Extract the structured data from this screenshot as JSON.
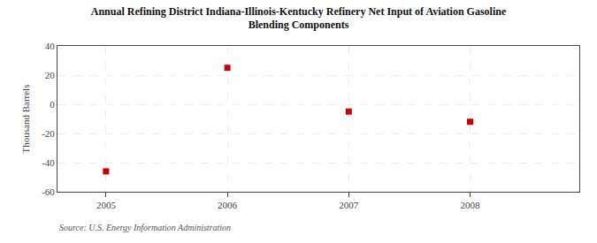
{
  "chart_data": {
    "type": "scatter",
    "title": "Annual Refining District Indiana-Illinois-Kentucky Refinery Net Input of Aviation Gasoline",
    "subtitle": "Blending Components",
    "ylabel": "Thousand Barrels",
    "annotations": [
      "Source: U.S. Energy Information Administration"
    ],
    "x": [
      2005,
      2006,
      2007,
      2008
    ],
    "values": [
      -46,
      25,
      -5,
      -12
    ],
    "color": "#cc0000",
    "marker": "square",
    "xlim": [
      2004.6,
      2008.9
    ],
    "xticks": [
      2005,
      2006,
      2007,
      2008
    ],
    "ylim": [
      -60,
      40
    ],
    "yticks": [
      -60,
      -40,
      -20,
      0,
      20,
      40
    ],
    "grid": true
  }
}
